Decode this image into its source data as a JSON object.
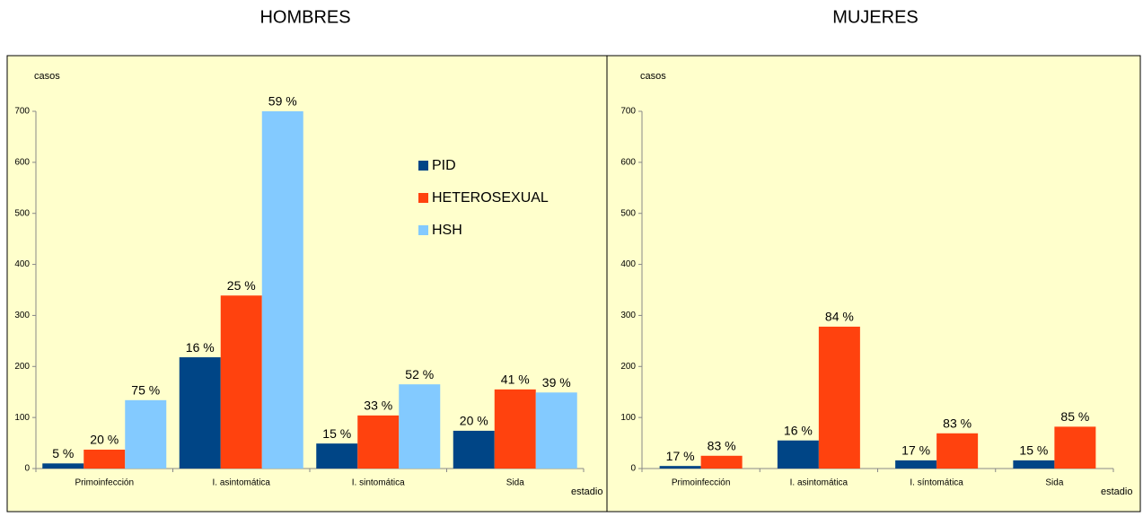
{
  "chart_data": [
    {
      "type": "bar",
      "title": "HOMBRES",
      "ylabel": "casos",
      "xlabel": "estadio",
      "categories": [
        "Primoinfección",
        "I. asintomática",
        "I. sintomática",
        "Sida"
      ],
      "ylim": [
        0,
        700
      ],
      "yticks": [
        0,
        100,
        200,
        300,
        400,
        500,
        600,
        700
      ],
      "legend": "right",
      "series": [
        {
          "name": "PID",
          "color": "#004586",
          "values": [
            10,
            218,
            49,
            74
          ],
          "labels": [
            "5 %",
            "16 %",
            "15 %",
            "20 %"
          ]
        },
        {
          "name": "HETEROSEXUAL",
          "color": "#ff420e",
          "values": [
            37,
            339,
            104,
            155
          ],
          "labels": [
            "20 %",
            "25 %",
            "33 %",
            "41 %"
          ]
        },
        {
          "name": "HSH",
          "color": "#83caff",
          "values": [
            134,
            700,
            165,
            149
          ],
          "labels": [
            "75 %",
            "59 %",
            "52 %",
            "39 %"
          ]
        }
      ]
    },
    {
      "type": "bar",
      "title": "MUJERES",
      "ylabel": "casos",
      "xlabel": "estadio",
      "categories": [
        "Primoinfección",
        "I. asintomática",
        "I. síntomática",
        "Sida"
      ],
      "ylim": [
        0,
        700
      ],
      "yticks": [
        0,
        100,
        200,
        300,
        400,
        500,
        600,
        700
      ],
      "series": [
        {
          "color": "#004586",
          "values": [
            5,
            55,
            16,
            16
          ],
          "labels": [
            "17 %",
            "16 %",
            "17 %",
            "15 %"
          ]
        },
        {
          "color": "#ff420e",
          "values": [
            25,
            278,
            69,
            82
          ],
          "labels": [
            "83 %",
            "84 %",
            "83 %",
            "85 %"
          ]
        }
      ]
    }
  ]
}
